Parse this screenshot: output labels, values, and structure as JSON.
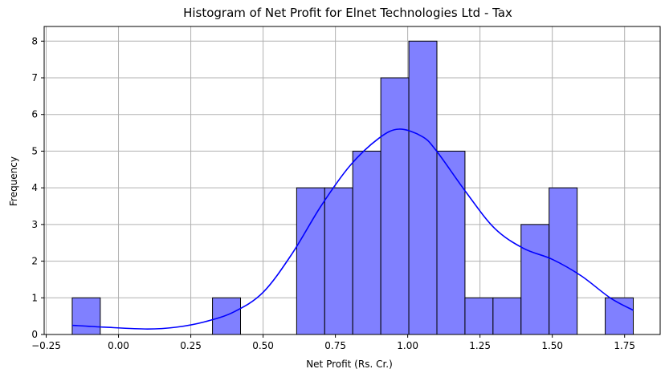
{
  "chart_data": {
    "type": "bar",
    "title": "Histogram of Net Profit for Elnet Technologies Ltd - Tax",
    "xlabel": "Net Profit (Rs. Cr.)",
    "ylabel": "Frequency",
    "xlim": [
      -0.257,
      1.873
    ],
    "ylim": [
      0,
      8.4
    ],
    "x_ticks": [
      -0.25,
      0.0,
      0.25,
      0.5,
      0.75,
      1.0,
      1.25,
      1.5,
      1.75
    ],
    "x_tick_labels": [
      "−0.25",
      "0.00",
      "0.25",
      "0.50",
      "0.75",
      "1.00",
      "1.25",
      "1.50",
      "1.75"
    ],
    "y_ticks": [
      0,
      1,
      2,
      3,
      4,
      5,
      6,
      7,
      8
    ],
    "y_tick_labels": [
      "0",
      "1",
      "2",
      "3",
      "4",
      "5",
      "6",
      "7",
      "8"
    ],
    "grid": true,
    "bins": [
      {
        "x0": -0.16,
        "x1": -0.063,
        "count": 1
      },
      {
        "x0": -0.063,
        "x1": 0.034,
        "count": 0
      },
      {
        "x0": 0.034,
        "x1": 0.131,
        "count": 0
      },
      {
        "x0": 0.131,
        "x1": 0.228,
        "count": 0
      },
      {
        "x0": 0.228,
        "x1": 0.325,
        "count": 0
      },
      {
        "x0": 0.325,
        "x1": 0.422,
        "count": 1
      },
      {
        "x0": 0.422,
        "x1": 0.519,
        "count": 0
      },
      {
        "x0": 0.519,
        "x1": 0.616,
        "count": 0
      },
      {
        "x0": 0.616,
        "x1": 0.713,
        "count": 4
      },
      {
        "x0": 0.713,
        "x1": 0.81,
        "count": 4
      },
      {
        "x0": 0.81,
        "x1": 0.907,
        "count": 5
      },
      {
        "x0": 0.907,
        "x1": 1.004,
        "count": 7
      },
      {
        "x0": 1.004,
        "x1": 1.101,
        "count": 8
      },
      {
        "x0": 1.101,
        "x1": 1.198,
        "count": 5
      },
      {
        "x0": 1.198,
        "x1": 1.295,
        "count": 1
      },
      {
        "x0": 1.295,
        "x1": 1.392,
        "count": 1
      },
      {
        "x0": 1.392,
        "x1": 1.489,
        "count": 3
      },
      {
        "x0": 1.489,
        "x1": 1.586,
        "count": 4
      },
      {
        "x0": 1.586,
        "x1": 1.683,
        "count": 0
      },
      {
        "x0": 1.683,
        "x1": 1.78,
        "count": 1
      }
    ],
    "kde": {
      "x": [
        -0.16,
        -0.05,
        0.1,
        0.2,
        0.3,
        0.4,
        0.5,
        0.6,
        0.7,
        0.8,
        0.9,
        0.97,
        1.05,
        1.1,
        1.2,
        1.3,
        1.4,
        1.5,
        1.6,
        1.7,
        1.78
      ],
      "y": [
        0.25,
        0.2,
        0.15,
        0.2,
        0.35,
        0.62,
        1.15,
        2.2,
        3.5,
        4.6,
        5.35,
        5.6,
        5.4,
        5.0,
        3.9,
        2.9,
        2.35,
        2.05,
        1.6,
        1.0,
        0.66
      ]
    },
    "colors": {
      "bar_fill": "#8080ff",
      "bar_edge": "#000000",
      "kde_line": "#0000ff",
      "grid": "#b0b0b0"
    }
  }
}
